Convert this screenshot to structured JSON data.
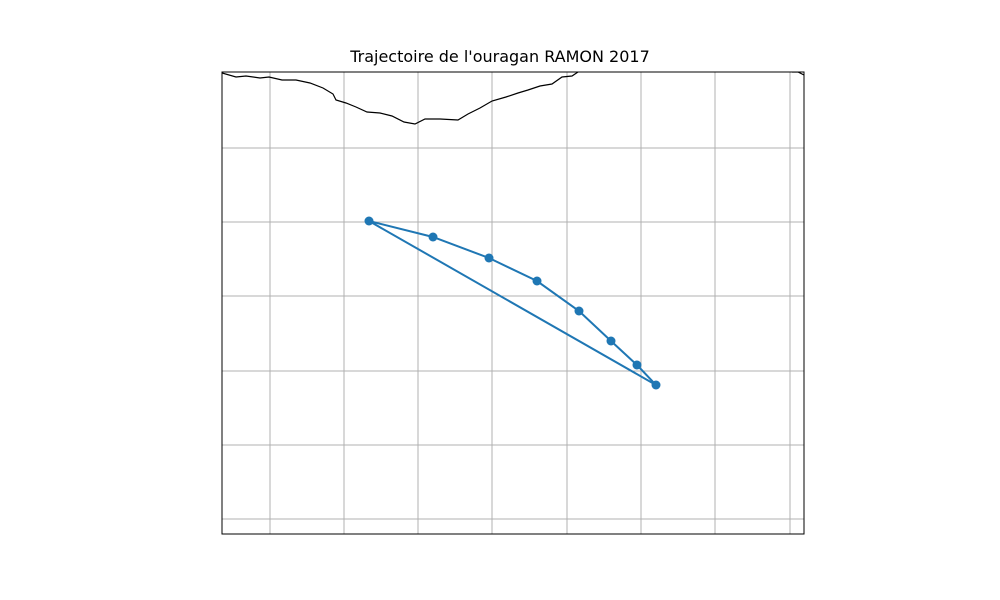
{
  "title": "Trajectoire de l'ouragan RAMON 2017",
  "colors": {
    "track": "#1f77b4",
    "grid": "#b0b0b0",
    "coastline": "#000000",
    "frame": "#000000"
  },
  "map": {
    "grid": true,
    "coastline": true
  },
  "chart_data": {
    "type": "line",
    "title": "Trajectoire de l'ouragan RAMON 2017",
    "xlabel": "",
    "ylabel": "",
    "grid": true,
    "markers": true
  }
}
